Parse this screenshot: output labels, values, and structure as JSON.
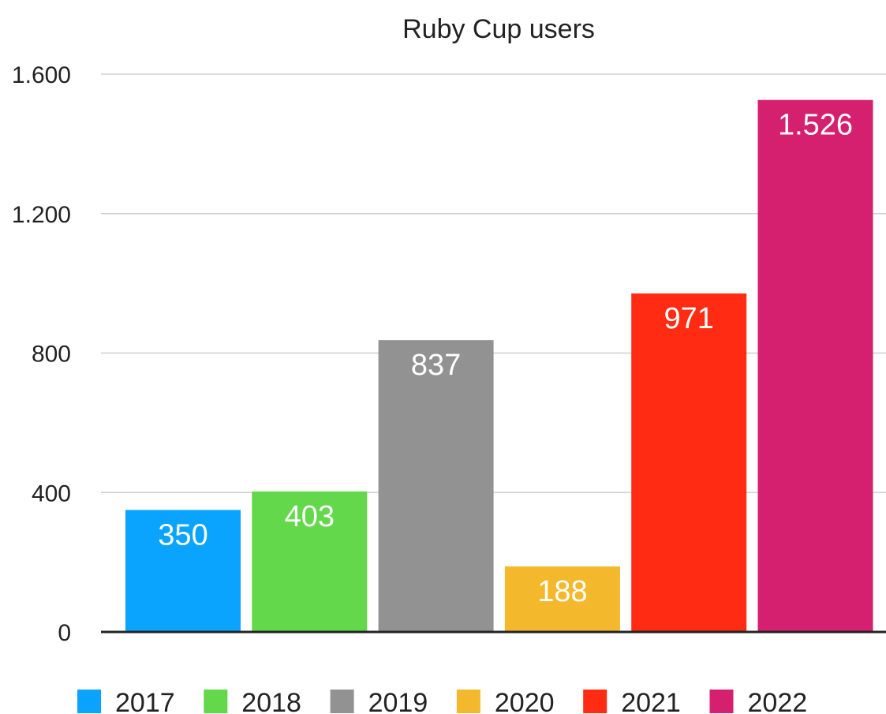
{
  "chart_data": {
    "type": "bar",
    "title": "Ruby Cup users",
    "xlabel": "",
    "ylabel": "",
    "ylim": [
      0,
      1600
    ],
    "yticks": [
      0,
      400,
      800,
      1200,
      1600
    ],
    "ytick_labels": [
      "0",
      "400",
      "800",
      "1.200",
      "1.600"
    ],
    "grid": true,
    "legend_position": "bottom",
    "series": [
      {
        "name": "2017",
        "value": 350,
        "value_label": "350",
        "color": "#0aa4ff"
      },
      {
        "name": "2018",
        "value": 403,
        "value_label": "403",
        "color": "#63d84a"
      },
      {
        "name": "2019",
        "value": 837,
        "value_label": "837",
        "color": "#929292"
      },
      {
        "name": "2020",
        "value": 188,
        "value_label": "188",
        "color": "#f4b82c"
      },
      {
        "name": "2021",
        "value": 971,
        "value_label": "971",
        "color": "#ff2b12"
      },
      {
        "name": "2022",
        "value": 1526,
        "value_label": "1.526",
        "color": "#d51f6f"
      }
    ]
  }
}
